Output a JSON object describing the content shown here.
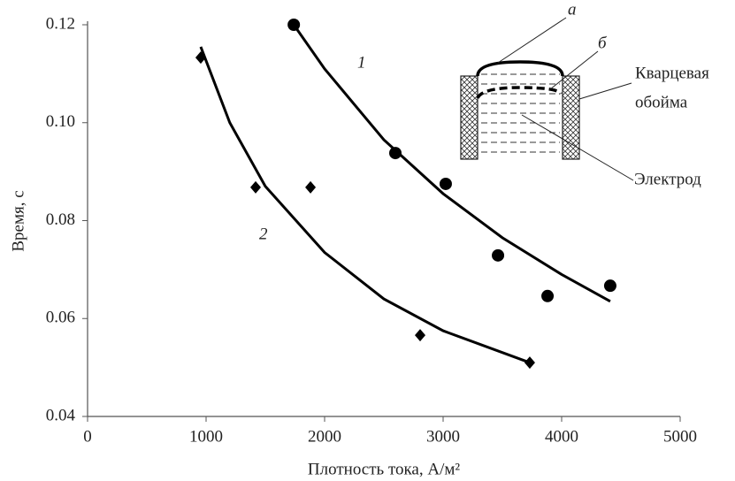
{
  "chart_data": {
    "type": "scatter",
    "x_label": "Плотность тока, А/м²",
    "y_label": "Время, с",
    "xlim": [
      0,
      5000
    ],
    "xticks": [
      0,
      1000,
      2000,
      3000,
      4000,
      5000
    ],
    "ylim": [
      0.04,
      0.12
    ],
    "yticks": [
      0.04,
      0.06,
      0.08,
      {
        "value": 0.1,
        "label": "0.10"
      },
      0.12
    ],
    "series": [
      {
        "name": "1",
        "marker": "circle",
        "color": "#000000",
        "x": [
          1740,
          2597,
          3022,
          3463,
          3881,
          4410
        ],
        "values": [
          0.12,
          0.0938,
          0.0875,
          0.0729,
          0.0646,
          0.0667
        ],
        "curve_x": [
          1740,
          2000,
          2500,
          3000,
          3500,
          4000,
          4410
        ],
        "curve_values": [
          0.12,
          0.111,
          0.0965,
          0.0855,
          0.0765,
          0.069,
          0.0635
        ]
      },
      {
        "name": "2",
        "marker": "diamond",
        "color": "#000000",
        "x": [
          955,
          1418,
          1881,
          2806,
          3731
        ],
        "values": [
          0.1133,
          0.0868,
          0.0868,
          0.0566,
          0.051
        ],
        "curve_x": [
          955,
          1200,
          1500,
          2000,
          2500,
          3000,
          3730
        ],
        "curve_values": [
          0.1155,
          0.1,
          0.087,
          0.0735,
          0.064,
          0.0575,
          0.051
        ]
      }
    ],
    "inset": {
      "label_a": "а",
      "label_b": "б",
      "holder": [
        "Кварцевая",
        "обойма"
      ],
      "electrode": "Электрод"
    }
  }
}
